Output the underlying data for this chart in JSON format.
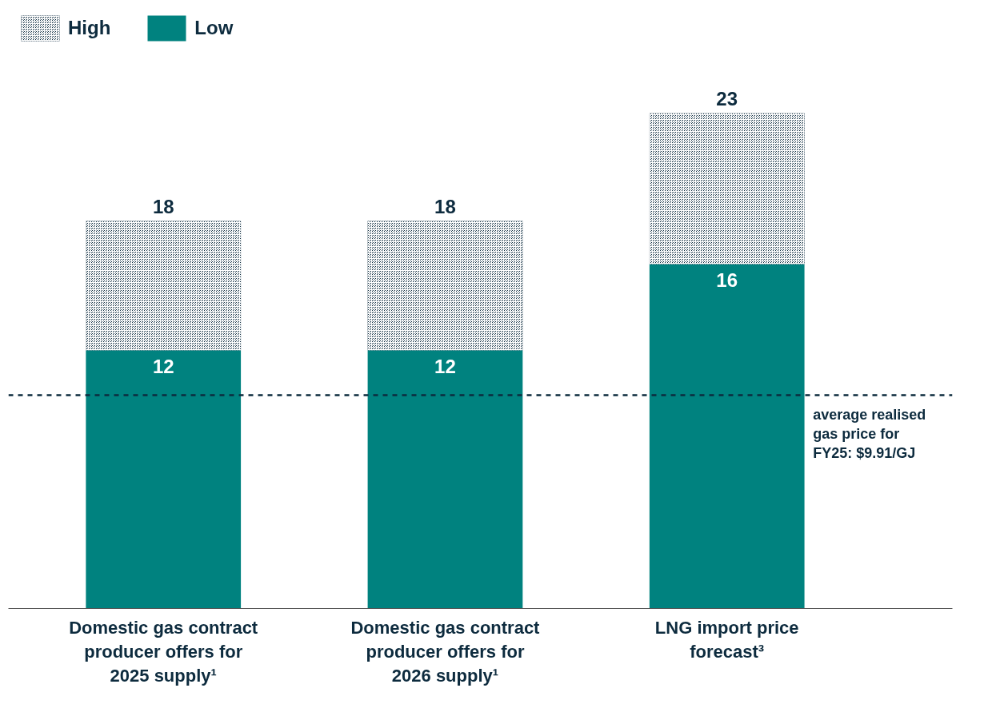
{
  "chart_data": {
    "type": "bar",
    "stacked": true,
    "categories": [
      "Domestic gas contract producer offers for 2025 supply¹",
      "Domestic gas contract producer offers for 2026 supply¹",
      "LNG import price forecast³"
    ],
    "series": [
      {
        "name": "Low",
        "color": "#00827f",
        "values": [
          12,
          12,
          16
        ],
        "value_labels": [
          "12",
          "12",
          "16"
        ]
      },
      {
        "name": "High",
        "color": "#0d2b3e",
        "values": [
          6,
          6,
          7
        ]
      }
    ],
    "totals": [
      "18",
      "18",
      "23"
    ],
    "ref_lines": [
      {
        "axis": "y",
        "value": 9.91,
        "label": "average realised gas price for FY25: $9.91/GJ",
        "color": "#0d2b3e",
        "line_style": "dashed"
      }
    ],
    "legend": "top left"
  }
}
